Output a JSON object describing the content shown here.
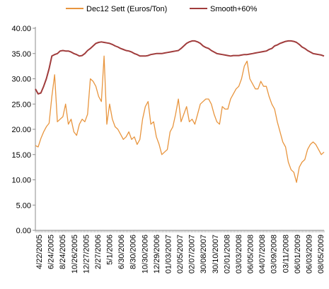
{
  "chart_data": {
    "type": "line",
    "title": "",
    "xlabel": "",
    "ylabel": "",
    "ylim": [
      0,
      40
    ],
    "grid": false,
    "legend_position": "top",
    "y_ticks": [
      "0.00",
      "5.00",
      "10.00",
      "15.00",
      "20.00",
      "25.00",
      "30.00",
      "35.00",
      "40.00"
    ],
    "x_tick_labels": [
      "4/22/2005",
      "6/24/2005",
      "8/24/2005",
      "10/26/2005",
      "12/27/2005",
      "2/27/2006",
      "5/1/2006",
      "6/30/2006",
      "8/30/2006",
      "10/30/2006",
      "12/29/2006",
      "01/03/2007",
      "02/05/2007",
      "02/07/2007",
      "30/08/2007",
      "30/10/2007",
      "02/01/2008",
      "03/03/2008",
      "06/05/2008",
      "04/07/2008",
      "03/09/2008",
      "03/11/2008",
      "06/01/2009",
      "06/03/2009",
      "08/05/2009"
    ],
    "series": [
      {
        "name": "Dec12 Sett (Euros/Ton)",
        "color": "#e8953e",
        "values": [
          16.8,
          16.5,
          18.2,
          19.5,
          20.5,
          21.2,
          26.5,
          30.8,
          21.5,
          22.0,
          22.5,
          25.0,
          21.0,
          22.0,
          19.5,
          18.8,
          21.0,
          22.0,
          21.5,
          23.0,
          30.0,
          29.5,
          28.5,
          26.5,
          25.5,
          34.5,
          21.0,
          25.0,
          22.0,
          20.5,
          20.0,
          19.0,
          18.0,
          18.5,
          19.5,
          18.0,
          18.5,
          17.0,
          18.0,
          22.0,
          24.5,
          25.5,
          21.0,
          21.5,
          18.5,
          17.0,
          15.0,
          15.5,
          16.0,
          19.5,
          20.5,
          23.0,
          26.0,
          21.5,
          23.0,
          24.5,
          21.5,
          22.0,
          21.0,
          23.0,
          25.0,
          25.5,
          26.0,
          26.0,
          25.0,
          23.0,
          21.5,
          21.0,
          24.5,
          24.0,
          24.0,
          26.0,
          27.0,
          28.0,
          28.5,
          30.0,
          32.5,
          33.5,
          30.0,
          29.0,
          28.0,
          28.0,
          29.5,
          28.5,
          28.5,
          26.5,
          25.0,
          24.0,
          21.5,
          19.5,
          17.5,
          16.5,
          13.5,
          12.0,
          11.5,
          9.5,
          12.5,
          13.5,
          14.0,
          16.0,
          17.0,
          17.5,
          17.0,
          16.0,
          15.0,
          15.5
        ]
      },
      {
        "name": "Smooth+60%",
        "color": "#a03c3c",
        "values": [
          28.0,
          27.0,
          27.2,
          28.5,
          30.0,
          32.0,
          34.5,
          34.8,
          35.0,
          35.5,
          35.6,
          35.5,
          35.5,
          35.3,
          35.0,
          34.8,
          34.5,
          34.6,
          35.0,
          35.6,
          36.0,
          36.5,
          37.0,
          37.2,
          37.3,
          37.2,
          37.1,
          37.0,
          36.8,
          36.5,
          36.3,
          36.0,
          35.8,
          35.6,
          35.5,
          35.3,
          35.0,
          34.8,
          34.5,
          34.5,
          34.5,
          34.6,
          34.8,
          34.9,
          35.0,
          35.0,
          35.0,
          35.1,
          35.2,
          35.3,
          35.4,
          35.5,
          35.6,
          36.0,
          36.5,
          37.0,
          37.3,
          37.5,
          37.5,
          37.3,
          37.0,
          36.5,
          36.2,
          36.0,
          35.6,
          35.3,
          35.0,
          34.9,
          34.8,
          34.7,
          34.6,
          34.5,
          34.6,
          34.6,
          34.6,
          34.7,
          34.8,
          34.8,
          34.9,
          35.0,
          35.1,
          35.2,
          35.3,
          35.4,
          35.5,
          35.8,
          36.0,
          36.5,
          36.7,
          37.0,
          37.2,
          37.4,
          37.5,
          37.5,
          37.4,
          37.2,
          36.8,
          36.3,
          36.0,
          35.6,
          35.3,
          35.0,
          34.9,
          34.8,
          34.7,
          34.5
        ]
      }
    ]
  }
}
